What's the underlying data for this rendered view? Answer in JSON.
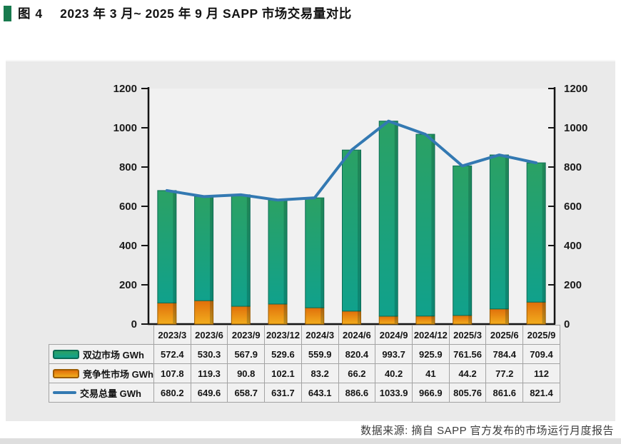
{
  "figure": {
    "label": "图 4",
    "title": "2023 年 3 月~ 2025 年 9 月 SAPP 市场交易量对比",
    "bullet_color": "#187a4e"
  },
  "source_note": "数据来源: 摘自 SAPP 官方发布的市场运行月度报告",
  "colors": {
    "panel_background": "#eaeaea",
    "plot_background": "#f1f1f1",
    "axis": "#141414",
    "table_border": "#a3a3a3",
    "table_cell_background": "#f1f1f1",
    "bilateral_bar_top": "#2ba164",
    "bilateral_bar_bottom": "#10a18c",
    "bilateral_bar_edge": "#0d6b55",
    "competitive_bar_top": "#e06f0a",
    "competitive_bar_bottom": "#f2ad1e",
    "competitive_bar_edge": "#9c5c00",
    "total_line": "#3379b2",
    "title_bullet": "#187a4e"
  },
  "chart_data": {
    "type": "combo: stacked bar + line, dual mirrored y-axes, with data table legend",
    "categories": [
      "2023/3",
      "2023/6",
      "2023/9",
      "2023/12",
      "2024/3",
      "2024/6",
      "2024/9",
      "2024/12",
      "2025/3",
      "2025/6",
      "2025/9"
    ],
    "series": [
      {
        "name": "双边市场 GWh",
        "chart_type": "bar",
        "stack_position": "top",
        "color_top": "#2ba164",
        "color_bottom": "#10a18c",
        "edge": "#0d6b55",
        "values": [
          572.4,
          530.3,
          567.9,
          529.6,
          559.9,
          820.4,
          993.7,
          925.9,
          761.56,
          784.4,
          709.4
        ]
      },
      {
        "name": "竞争性市场 GWh",
        "chart_type": "bar",
        "stack_position": "bottom",
        "color_top": "#e06f0a",
        "color_bottom": "#f2ad1e",
        "edge": "#9c5c00",
        "values": [
          107.8,
          119.3,
          90.8,
          102.1,
          83.2,
          66.2,
          40.2,
          41,
          44.2,
          77.2,
          112
        ]
      },
      {
        "name": "交易总量 GWh",
        "chart_type": "line",
        "color": "#3379b2",
        "values": [
          680.2,
          649.6,
          658.7,
          631.7,
          643.1,
          886.6,
          1033.9,
          966.9,
          805.76,
          861.6,
          821.4
        ]
      }
    ],
    "y_axis": {
      "min": 0,
      "max": 1200,
      "step": 200,
      "sides": "left and right, identical ticks"
    },
    "x_axis": {
      "tick_labels_shown_in": "data table header row"
    },
    "grid": false,
    "legend_position": "data table first column"
  }
}
